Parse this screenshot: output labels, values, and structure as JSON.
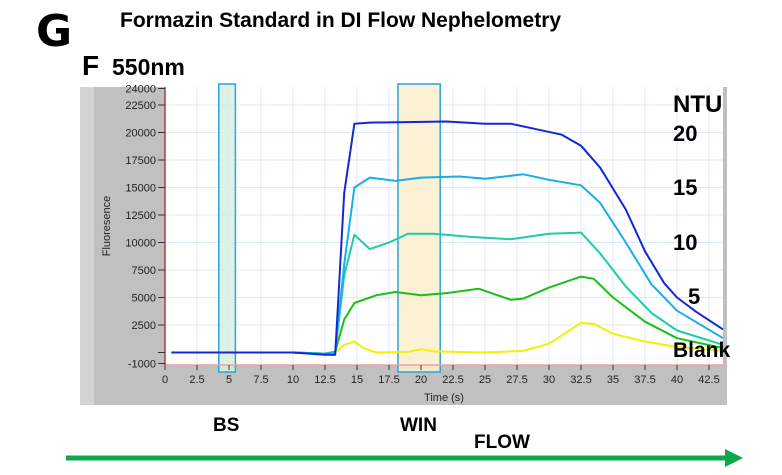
{
  "panel_letter": "G",
  "title": "Formazin Standard in DI Flow Nephelometry",
  "subplot_letter": "F",
  "wavelength": "550nm",
  "ntu_header": "NTU",
  "labels": {
    "bs": "BS",
    "win": "WIN",
    "flow": "FLOW"
  },
  "colors": {
    "blank": "#f2f200",
    "ntu5": "#19c019",
    "ntu10": "#1fcca8",
    "ntu15": "#19aee6",
    "ntu20": "#1428d2",
    "bs_band": "#d6f0e0",
    "win_band": "#fbefcc",
    "band_border": "#2aa6d8",
    "flow_arrow": "#0aa84a"
  },
  "chart_data": {
    "type": "line",
    "title": "Formazin Standard in DI Flow Nephelometry",
    "xlabel": "Time (s)",
    "ylabel": "Fluoresence",
    "xlim": [
      0,
      43.6
    ],
    "ylim": [
      -1000,
      24000
    ],
    "xticks": [
      "0",
      "2.5",
      "5",
      "7.5",
      "10",
      "12.5",
      "15",
      "17.5",
      "20",
      "22.5",
      "25",
      "27.5",
      "30",
      "32.5",
      "35",
      "37.5",
      "40",
      "42.5"
    ],
    "yticks": [
      "-1000",
      "",
      "2500",
      "5000",
      "7500",
      "10000",
      "12500",
      "15000",
      "17500",
      "20000",
      "22500",
      "24000"
    ],
    "grid": true,
    "bands": [
      {
        "label": "BS",
        "x": [
          4.2,
          5.5
        ]
      },
      {
        "label": "WIN",
        "x": [
          18.2,
          21.5
        ]
      }
    ],
    "series": [
      {
        "name": "Blank",
        "points": [
          [
            0.5,
            0
          ],
          [
            10,
            0
          ],
          [
            12.5,
            -100
          ],
          [
            13.3,
            0
          ],
          [
            14,
            700
          ],
          [
            14.8,
            1000
          ],
          [
            15.5,
            400
          ],
          [
            16.5,
            0
          ],
          [
            19,
            50
          ],
          [
            20,
            300
          ],
          [
            21,
            100
          ],
          [
            25,
            0
          ],
          [
            28,
            150
          ],
          [
            30,
            800
          ],
          [
            32.5,
            2700
          ],
          [
            33.5,
            2600
          ],
          [
            35,
            1700
          ],
          [
            37.5,
            1000
          ],
          [
            40,
            500
          ],
          [
            43.6,
            150
          ]
        ]
      },
      {
        "name": "5",
        "points": [
          [
            0.5,
            0
          ],
          [
            10,
            0
          ],
          [
            12.5,
            -100
          ],
          [
            13.3,
            50
          ],
          [
            14,
            3000
          ],
          [
            14.8,
            4500
          ],
          [
            16.5,
            5200
          ],
          [
            18,
            5500
          ],
          [
            20,
            5200
          ],
          [
            22,
            5400
          ],
          [
            24.5,
            5800
          ],
          [
            27,
            4800
          ],
          [
            28,
            4900
          ],
          [
            30,
            5900
          ],
          [
            32.5,
            6900
          ],
          [
            33.5,
            6700
          ],
          [
            35,
            5000
          ],
          [
            37.5,
            2800
          ],
          [
            40,
            1300
          ],
          [
            43.6,
            400
          ]
        ]
      },
      {
        "name": "10",
        "points": [
          [
            0.5,
            0
          ],
          [
            10,
            0
          ],
          [
            12.5,
            -100
          ],
          [
            13.3,
            50
          ],
          [
            14,
            7000
          ],
          [
            14.8,
            10700
          ],
          [
            16,
            9400
          ],
          [
            17.5,
            10000
          ],
          [
            19,
            10800
          ],
          [
            21,
            10800
          ],
          [
            24,
            10500
          ],
          [
            27,
            10300
          ],
          [
            30,
            10800
          ],
          [
            32.5,
            10900
          ],
          [
            34,
            9000
          ],
          [
            36,
            6000
          ],
          [
            38,
            3600
          ],
          [
            40,
            2000
          ],
          [
            43.6,
            700
          ]
        ]
      },
      {
        "name": "15",
        "points": [
          [
            0.5,
            0
          ],
          [
            10,
            0
          ],
          [
            12.5,
            -100
          ],
          [
            13.3,
            50
          ],
          [
            14,
            8000
          ],
          [
            14.8,
            15000
          ],
          [
            16,
            15900
          ],
          [
            18,
            15600
          ],
          [
            20,
            15900
          ],
          [
            23,
            16000
          ],
          [
            25,
            15800
          ],
          [
            28,
            16200
          ],
          [
            30,
            15700
          ],
          [
            32.5,
            15200
          ],
          [
            34,
            13600
          ],
          [
            36,
            10000
          ],
          [
            38,
            6200
          ],
          [
            40,
            3800
          ],
          [
            43.6,
            1300
          ]
        ]
      },
      {
        "name": "20",
        "points": [
          [
            0.5,
            0
          ],
          [
            10,
            0
          ],
          [
            12.5,
            -200
          ],
          [
            13.3,
            -200
          ],
          [
            14,
            14500
          ],
          [
            14.8,
            20800
          ],
          [
            16,
            20900
          ],
          [
            22,
            21000
          ],
          [
            25,
            20800
          ],
          [
            27,
            20800
          ],
          [
            29,
            20300
          ],
          [
            31,
            19800
          ],
          [
            32.5,
            18800
          ],
          [
            34,
            16800
          ],
          [
            36,
            13000
          ],
          [
            37.5,
            9200
          ],
          [
            39,
            6300
          ],
          [
            40,
            5000
          ],
          [
            41.5,
            3700
          ],
          [
            43.6,
            2100
          ]
        ]
      }
    ],
    "legend": [
      {
        "series": "20",
        "label": "20"
      },
      {
        "series": "15",
        "label": "15"
      },
      {
        "series": "10",
        "label": "10"
      },
      {
        "series": "5",
        "label": "5"
      },
      {
        "series": "Blank",
        "label": "Blank"
      }
    ],
    "legend_placement": "right"
  }
}
